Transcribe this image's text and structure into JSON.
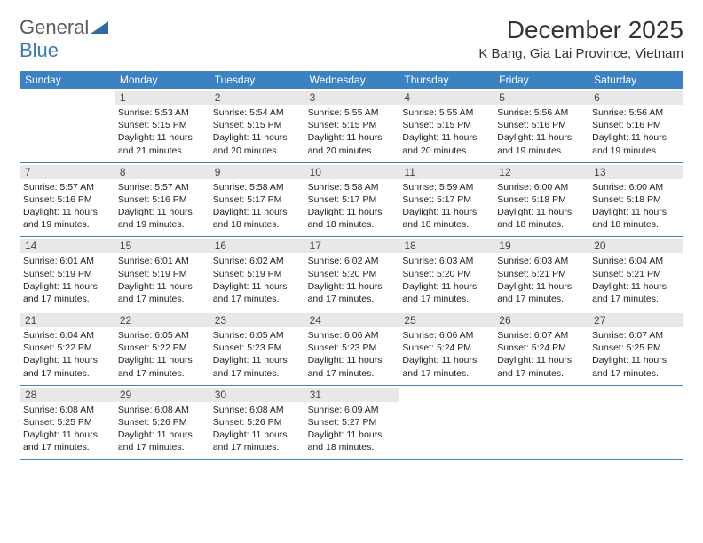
{
  "logo": {
    "general": "General",
    "blue": "Blue",
    "mark_color": "#2f6aa8"
  },
  "title": "December 2025",
  "subtitle": "K Bang, Gia Lai Province, Vietnam",
  "colors": {
    "header_bg": "#3a82c4",
    "header_text": "#ffffff",
    "day_num_bg": "#e8e8e8",
    "rule": "#3a82c4",
    "body_text": "#222222"
  },
  "weekdays": [
    "Sunday",
    "Monday",
    "Tuesday",
    "Wednesday",
    "Thursday",
    "Friday",
    "Saturday"
  ],
  "weeks": [
    [
      {
        "num": "",
        "sunrise": "",
        "sunset": "",
        "daylight": ""
      },
      {
        "num": "1",
        "sunrise": "Sunrise: 5:53 AM",
        "sunset": "Sunset: 5:15 PM",
        "daylight": "Daylight: 11 hours and 21 minutes."
      },
      {
        "num": "2",
        "sunrise": "Sunrise: 5:54 AM",
        "sunset": "Sunset: 5:15 PM",
        "daylight": "Daylight: 11 hours and 20 minutes."
      },
      {
        "num": "3",
        "sunrise": "Sunrise: 5:55 AM",
        "sunset": "Sunset: 5:15 PM",
        "daylight": "Daylight: 11 hours and 20 minutes."
      },
      {
        "num": "4",
        "sunrise": "Sunrise: 5:55 AM",
        "sunset": "Sunset: 5:15 PM",
        "daylight": "Daylight: 11 hours and 20 minutes."
      },
      {
        "num": "5",
        "sunrise": "Sunrise: 5:56 AM",
        "sunset": "Sunset: 5:16 PM",
        "daylight": "Daylight: 11 hours and 19 minutes."
      },
      {
        "num": "6",
        "sunrise": "Sunrise: 5:56 AM",
        "sunset": "Sunset: 5:16 PM",
        "daylight": "Daylight: 11 hours and 19 minutes."
      }
    ],
    [
      {
        "num": "7",
        "sunrise": "Sunrise: 5:57 AM",
        "sunset": "Sunset: 5:16 PM",
        "daylight": "Daylight: 11 hours and 19 minutes."
      },
      {
        "num": "8",
        "sunrise": "Sunrise: 5:57 AM",
        "sunset": "Sunset: 5:16 PM",
        "daylight": "Daylight: 11 hours and 19 minutes."
      },
      {
        "num": "9",
        "sunrise": "Sunrise: 5:58 AM",
        "sunset": "Sunset: 5:17 PM",
        "daylight": "Daylight: 11 hours and 18 minutes."
      },
      {
        "num": "10",
        "sunrise": "Sunrise: 5:58 AM",
        "sunset": "Sunset: 5:17 PM",
        "daylight": "Daylight: 11 hours and 18 minutes."
      },
      {
        "num": "11",
        "sunrise": "Sunrise: 5:59 AM",
        "sunset": "Sunset: 5:17 PM",
        "daylight": "Daylight: 11 hours and 18 minutes."
      },
      {
        "num": "12",
        "sunrise": "Sunrise: 6:00 AM",
        "sunset": "Sunset: 5:18 PM",
        "daylight": "Daylight: 11 hours and 18 minutes."
      },
      {
        "num": "13",
        "sunrise": "Sunrise: 6:00 AM",
        "sunset": "Sunset: 5:18 PM",
        "daylight": "Daylight: 11 hours and 18 minutes."
      }
    ],
    [
      {
        "num": "14",
        "sunrise": "Sunrise: 6:01 AM",
        "sunset": "Sunset: 5:19 PM",
        "daylight": "Daylight: 11 hours and 17 minutes."
      },
      {
        "num": "15",
        "sunrise": "Sunrise: 6:01 AM",
        "sunset": "Sunset: 5:19 PM",
        "daylight": "Daylight: 11 hours and 17 minutes."
      },
      {
        "num": "16",
        "sunrise": "Sunrise: 6:02 AM",
        "sunset": "Sunset: 5:19 PM",
        "daylight": "Daylight: 11 hours and 17 minutes."
      },
      {
        "num": "17",
        "sunrise": "Sunrise: 6:02 AM",
        "sunset": "Sunset: 5:20 PM",
        "daylight": "Daylight: 11 hours and 17 minutes."
      },
      {
        "num": "18",
        "sunrise": "Sunrise: 6:03 AM",
        "sunset": "Sunset: 5:20 PM",
        "daylight": "Daylight: 11 hours and 17 minutes."
      },
      {
        "num": "19",
        "sunrise": "Sunrise: 6:03 AM",
        "sunset": "Sunset: 5:21 PM",
        "daylight": "Daylight: 11 hours and 17 minutes."
      },
      {
        "num": "20",
        "sunrise": "Sunrise: 6:04 AM",
        "sunset": "Sunset: 5:21 PM",
        "daylight": "Daylight: 11 hours and 17 minutes."
      }
    ],
    [
      {
        "num": "21",
        "sunrise": "Sunrise: 6:04 AM",
        "sunset": "Sunset: 5:22 PM",
        "daylight": "Daylight: 11 hours and 17 minutes."
      },
      {
        "num": "22",
        "sunrise": "Sunrise: 6:05 AM",
        "sunset": "Sunset: 5:22 PM",
        "daylight": "Daylight: 11 hours and 17 minutes."
      },
      {
        "num": "23",
        "sunrise": "Sunrise: 6:05 AM",
        "sunset": "Sunset: 5:23 PM",
        "daylight": "Daylight: 11 hours and 17 minutes."
      },
      {
        "num": "24",
        "sunrise": "Sunrise: 6:06 AM",
        "sunset": "Sunset: 5:23 PM",
        "daylight": "Daylight: 11 hours and 17 minutes."
      },
      {
        "num": "25",
        "sunrise": "Sunrise: 6:06 AM",
        "sunset": "Sunset: 5:24 PM",
        "daylight": "Daylight: 11 hours and 17 minutes."
      },
      {
        "num": "26",
        "sunrise": "Sunrise: 6:07 AM",
        "sunset": "Sunset: 5:24 PM",
        "daylight": "Daylight: 11 hours and 17 minutes."
      },
      {
        "num": "27",
        "sunrise": "Sunrise: 6:07 AM",
        "sunset": "Sunset: 5:25 PM",
        "daylight": "Daylight: 11 hours and 17 minutes."
      }
    ],
    [
      {
        "num": "28",
        "sunrise": "Sunrise: 6:08 AM",
        "sunset": "Sunset: 5:25 PM",
        "daylight": "Daylight: 11 hours and 17 minutes."
      },
      {
        "num": "29",
        "sunrise": "Sunrise: 6:08 AM",
        "sunset": "Sunset: 5:26 PM",
        "daylight": "Daylight: 11 hours and 17 minutes."
      },
      {
        "num": "30",
        "sunrise": "Sunrise: 6:08 AM",
        "sunset": "Sunset: 5:26 PM",
        "daylight": "Daylight: 11 hours and 17 minutes."
      },
      {
        "num": "31",
        "sunrise": "Sunrise: 6:09 AM",
        "sunset": "Sunset: 5:27 PM",
        "daylight": "Daylight: 11 hours and 18 minutes."
      },
      {
        "num": "",
        "sunrise": "",
        "sunset": "",
        "daylight": ""
      },
      {
        "num": "",
        "sunrise": "",
        "sunset": "",
        "daylight": ""
      },
      {
        "num": "",
        "sunrise": "",
        "sunset": "",
        "daylight": ""
      }
    ]
  ]
}
